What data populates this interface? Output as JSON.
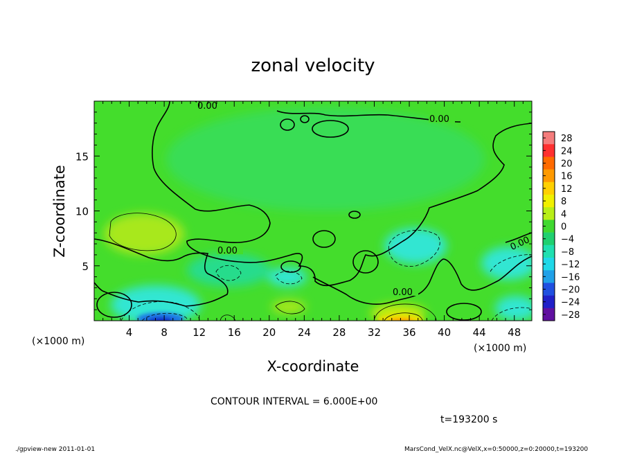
{
  "chart_data": {
    "type": "heatmap",
    "title": "zonal velocity",
    "xlabel": "X-coordinate",
    "ylabel": "Z-coordinate",
    "x_unit": "(×1000 m)",
    "y_unit": "(×1000 m)",
    "xlim": [
      0,
      50
    ],
    "ylim": [
      0,
      20
    ],
    "x_ticks": [
      4,
      8,
      12,
      16,
      20,
      24,
      28,
      32,
      36,
      40,
      44,
      48
    ],
    "y_ticks": [
      5,
      10,
      15
    ],
    "colorbar": {
      "levels": [
        28,
        24,
        20,
        16,
        12,
        8,
        4,
        0,
        -4,
        -8,
        -12,
        -16,
        -20,
        -24,
        -28
      ],
      "labels": [
        "28",
        "24",
        "20",
        "16",
        "12",
        "8",
        "4",
        "0",
        "−4",
        "−8",
        "−12",
        "−16",
        "−20",
        "−24",
        "−28"
      ],
      "colors": [
        "#f47c7c",
        "#ff3030",
        "#ff6a00",
        "#ff9a00",
        "#ffd000",
        "#f0f000",
        "#b8ee18",
        "#40d830",
        "#20d070",
        "#20e0b0",
        "#20d8e8",
        "#20a0e8",
        "#2050e0",
        "#2020c8",
        "#6010a0"
      ]
    },
    "field_colors": {
      "base": "#44dd2c",
      "weak_negative": "#28dc8c",
      "negative": "#30e6d2",
      "positive": "#a8e81c",
      "strong_positive": "#f0e000",
      "core_positive": "#ff8c00",
      "strong_negative": "#1e78e6",
      "core_negative": "#1428c8"
    },
    "contour_labels": [
      "0.00",
      "0.00",
      "0.00",
      "0.00",
      "0.00"
    ],
    "contour_interval": "CONTOUR INTERVAL = 6.000E+00",
    "time": "t=193200 s"
  },
  "footer": {
    "left": "./gpview-new  2011-01-01",
    "right": "MarsCond_VelX.nc@VelX,x=0:50000,z=0:20000,t=193200"
  }
}
